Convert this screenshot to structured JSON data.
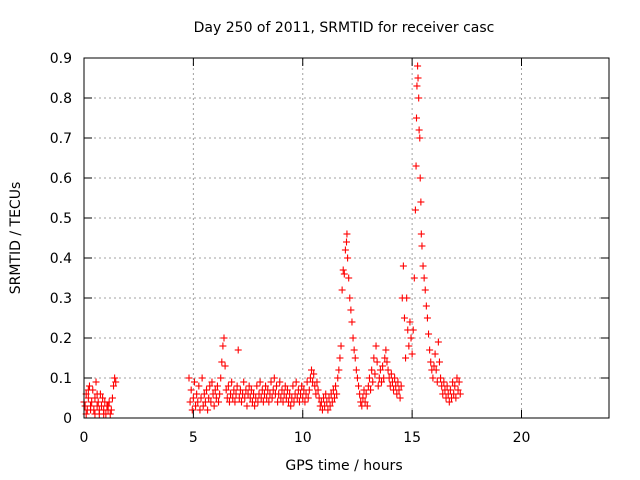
{
  "chart_data": {
    "type": "scatter",
    "title": "Day 250 of 2011, SRMTID for receiver casc",
    "xlabel": "GPS time / hours",
    "ylabel": "SRMTID / TECUs",
    "xlim": [
      0,
      24
    ],
    "ylim": [
      0,
      0.9
    ],
    "xticks": [
      0,
      5,
      10,
      15,
      20
    ],
    "yticks": [
      0,
      0.1,
      0.2,
      0.3,
      0.4,
      0.5,
      0.6,
      0.7,
      0.8,
      0.9
    ],
    "xtick_labels": [
      "0",
      "5",
      "10",
      "15",
      "20"
    ],
    "ytick_labels": [
      "0",
      "0.1",
      "0.2",
      "0.3",
      "0.4",
      "0.5",
      "0.6",
      "0.7",
      "0.8",
      "0.9"
    ],
    "grid": true,
    "marker": "+",
    "color": "#ff0000",
    "series": [
      {
        "name": "SRMTID",
        "points": [
          [
            0.0,
            0.04
          ],
          [
            0.05,
            0.03
          ],
          [
            0.1,
            0.06
          ],
          [
            0.15,
            0.02
          ],
          [
            0.2,
            0.05
          ],
          [
            0.25,
            0.08
          ],
          [
            0.3,
            0.03
          ],
          [
            0.35,
            0.04
          ],
          [
            0.4,
            0.07
          ],
          [
            0.45,
            0.02
          ],
          [
            0.5,
            0.05
          ],
          [
            0.55,
            0.09
          ],
          [
            0.6,
            0.03
          ],
          [
            0.65,
            0.04
          ],
          [
            0.7,
            0.02
          ],
          [
            0.75,
            0.06
          ],
          [
            0.8,
            0.03
          ],
          [
            0.85,
            0.05
          ],
          [
            0.9,
            0.02
          ],
          [
            0.95,
            0.04
          ],
          [
            1.0,
            0.01
          ],
          [
            1.05,
            0.03
          ],
          [
            1.1,
            0.02
          ],
          [
            1.15,
            0.04
          ],
          [
            1.2,
            0.01
          ],
          [
            1.25,
            0.02
          ],
          [
            1.3,
            0.05
          ],
          [
            1.35,
            0.08
          ],
          [
            1.4,
            0.1
          ],
          [
            1.45,
            0.09
          ],
          [
            0.1,
            0.01
          ],
          [
            0.3,
            0.02
          ],
          [
            0.5,
            0.01
          ],
          [
            0.7,
            0.01
          ],
          [
            0.9,
            0.01
          ],
          [
            0.2,
            0.07
          ],
          [
            0.6,
            0.06
          ],
          [
            1.1,
            0.03
          ],
          [
            4.8,
            0.1
          ],
          [
            4.85,
            0.04
          ],
          [
            4.9,
            0.07
          ],
          [
            4.95,
            0.02
          ],
          [
            5.0,
            0.05
          ],
          [
            5.05,
            0.09
          ],
          [
            5.1,
            0.03
          ],
          [
            5.15,
            0.06
          ],
          [
            5.2,
            0.04
          ],
          [
            5.25,
            0.08
          ],
          [
            5.3,
            0.02
          ],
          [
            5.35,
            0.05
          ],
          [
            5.4,
            0.1
          ],
          [
            5.45,
            0.03
          ],
          [
            5.5,
            0.06
          ],
          [
            5.55,
            0.04
          ],
          [
            5.6,
            0.07
          ],
          [
            5.65,
            0.02
          ],
          [
            5.7,
            0.05
          ],
          [
            5.75,
            0.08
          ],
          [
            5.8,
            0.04
          ],
          [
            5.85,
            0.09
          ],
          [
            5.9,
            0.06
          ],
          [
            5.95,
            0.03
          ],
          [
            6.0,
            0.07
          ],
          [
            6.05,
            0.05
          ],
          [
            6.1,
            0.08
          ],
          [
            6.15,
            0.04
          ],
          [
            6.2,
            0.06
          ],
          [
            6.25,
            0.1
          ],
          [
            6.3,
            0.14
          ],
          [
            6.35,
            0.18
          ],
          [
            6.4,
            0.2
          ],
          [
            6.45,
            0.13
          ],
          [
            6.5,
            0.07
          ],
          [
            6.55,
            0.05
          ],
          [
            6.6,
            0.08
          ],
          [
            6.65,
            0.04
          ],
          [
            6.7,
            0.06
          ],
          [
            6.75,
            0.09
          ],
          [
            6.8,
            0.05
          ],
          [
            6.85,
            0.07
          ],
          [
            6.9,
            0.04
          ],
          [
            6.95,
            0.06
          ],
          [
            7.0,
            0.08
          ],
          [
            7.05,
            0.17
          ],
          [
            7.1,
            0.05
          ],
          [
            7.15,
            0.07
          ],
          [
            7.2,
            0.04
          ],
          [
            7.25,
            0.06
          ],
          [
            7.3,
            0.09
          ],
          [
            7.35,
            0.05
          ],
          [
            7.4,
            0.07
          ],
          [
            7.45,
            0.03
          ],
          [
            7.5,
            0.06
          ],
          [
            7.55,
            0.08
          ],
          [
            7.6,
            0.05
          ],
          [
            7.65,
            0.07
          ],
          [
            7.7,
            0.04
          ],
          [
            7.75,
            0.06
          ],
          [
            7.8,
            0.03
          ],
          [
            7.85,
            0.05
          ],
          [
            7.9,
            0.08
          ],
          [
            7.95,
            0.04
          ],
          [
            8.0,
            0.06
          ],
          [
            8.05,
            0.09
          ],
          [
            8.1,
            0.05
          ],
          [
            8.15,
            0.07
          ],
          [
            8.2,
            0.04
          ],
          [
            8.25,
            0.06
          ],
          [
            8.3,
            0.08
          ],
          [
            8.35,
            0.05
          ],
          [
            8.4,
            0.07
          ],
          [
            8.45,
            0.04
          ],
          [
            8.5,
            0.06
          ],
          [
            8.55,
            0.09
          ],
          [
            8.6,
            0.05
          ],
          [
            8.65,
            0.07
          ],
          [
            8.7,
            0.1
          ],
          [
            8.75,
            0.06
          ],
          [
            8.8,
            0.08
          ],
          [
            8.85,
            0.04
          ],
          [
            8.9,
            0.06
          ],
          [
            8.95,
            0.09
          ],
          [
            9.0,
            0.05
          ],
          [
            9.05,
            0.07
          ],
          [
            9.1,
            0.04
          ],
          [
            9.15,
            0.06
          ],
          [
            9.2,
            0.08
          ],
          [
            9.25,
            0.05
          ],
          [
            9.3,
            0.07
          ],
          [
            9.35,
            0.04
          ],
          [
            9.4,
            0.06
          ],
          [
            9.45,
            0.03
          ],
          [
            9.5,
            0.05
          ],
          [
            9.55,
            0.08
          ],
          [
            9.6,
            0.04
          ],
          [
            9.65,
            0.06
          ],
          [
            9.7,
            0.09
          ],
          [
            9.75,
            0.05
          ],
          [
            9.8,
            0.07
          ],
          [
            9.85,
            0.04
          ],
          [
            9.9,
            0.06
          ],
          [
            9.95,
            0.08
          ],
          [
            10.0,
            0.05
          ],
          [
            10.05,
            0.07
          ],
          [
            10.1,
            0.04
          ],
          [
            10.15,
            0.06
          ],
          [
            10.2,
            0.09
          ],
          [
            10.25,
            0.05
          ],
          [
            10.3,
            0.07
          ],
          [
            10.35,
            0.1
          ],
          [
            10.4,
            0.12
          ],
          [
            10.45,
            0.09
          ],
          [
            10.5,
            0.11
          ],
          [
            10.55,
            0.08
          ],
          [
            10.6,
            0.06
          ],
          [
            10.65,
            0.09
          ],
          [
            10.7,
            0.07
          ],
          [
            10.75,
            0.05
          ],
          [
            10.8,
            0.03
          ],
          [
            10.85,
            0.04
          ],
          [
            10.9,
            0.02
          ],
          [
            10.95,
            0.05
          ],
          [
            11.0,
            0.03
          ],
          [
            11.05,
            0.06
          ],
          [
            11.1,
            0.04
          ],
          [
            11.15,
            0.02
          ],
          [
            11.2,
            0.05
          ],
          [
            11.25,
            0.03
          ],
          [
            11.3,
            0.06
          ],
          [
            11.35,
            0.04
          ],
          [
            11.4,
            0.07
          ],
          [
            11.45,
            0.05
          ],
          [
            11.5,
            0.08
          ],
          [
            11.55,
            0.06
          ],
          [
            11.6,
            0.1
          ],
          [
            11.65,
            0.12
          ],
          [
            11.7,
            0.15
          ],
          [
            11.75,
            0.18
          ],
          [
            11.8,
            0.32
          ],
          [
            11.85,
            0.37
          ],
          [
            11.9,
            0.36
          ],
          [
            11.95,
            0.42
          ],
          [
            12.0,
            0.44
          ],
          [
            12.02,
            0.46
          ],
          [
            12.05,
            0.4
          ],
          [
            12.1,
            0.35
          ],
          [
            12.15,
            0.3
          ],
          [
            12.2,
            0.27
          ],
          [
            12.25,
            0.24
          ],
          [
            12.3,
            0.2
          ],
          [
            12.35,
            0.17
          ],
          [
            12.4,
            0.15
          ],
          [
            12.45,
            0.12
          ],
          [
            12.5,
            0.1
          ],
          [
            12.55,
            0.08
          ],
          [
            12.6,
            0.06
          ],
          [
            12.65,
            0.04
          ],
          [
            12.7,
            0.03
          ],
          [
            12.75,
            0.05
          ],
          [
            12.8,
            0.07
          ],
          [
            12.85,
            0.04
          ],
          [
            12.9,
            0.06
          ],
          [
            12.95,
            0.03
          ],
          [
            13.0,
            0.08
          ],
          [
            13.05,
            0.1
          ],
          [
            13.1,
            0.07
          ],
          [
            13.15,
            0.12
          ],
          [
            13.2,
            0.09
          ],
          [
            13.25,
            0.15
          ],
          [
            13.3,
            0.11
          ],
          [
            13.35,
            0.18
          ],
          [
            13.4,
            0.14
          ],
          [
            13.45,
            0.08
          ],
          [
            13.5,
            0.1
          ],
          [
            13.55,
            0.12
          ],
          [
            13.6,
            0.09
          ],
          [
            13.65,
            0.13
          ],
          [
            13.7,
            0.1
          ],
          [
            13.75,
            0.15
          ],
          [
            13.8,
            0.17
          ],
          [
            13.85,
            0.14
          ],
          [
            13.9,
            0.12
          ],
          [
            13.95,
            0.1
          ],
          [
            14.0,
            0.08
          ],
          [
            14.05,
            0.11
          ],
          [
            14.1,
            0.09
          ],
          [
            14.15,
            0.07
          ],
          [
            14.2,
            0.1
          ],
          [
            14.25,
            0.08
          ],
          [
            14.3,
            0.06
          ],
          [
            14.35,
            0.09
          ],
          [
            14.4,
            0.07
          ],
          [
            14.45,
            0.05
          ],
          [
            14.5,
            0.08
          ],
          [
            14.55,
            0.3
          ],
          [
            14.6,
            0.38
          ],
          [
            14.65,
            0.25
          ],
          [
            14.7,
            0.15
          ],
          [
            14.75,
            0.3
          ],
          [
            14.8,
            0.22
          ],
          [
            14.85,
            0.18
          ],
          [
            14.9,
            0.24
          ],
          [
            14.95,
            0.2
          ],
          [
            15.0,
            0.16
          ],
          [
            15.05,
            0.22
          ],
          [
            15.1,
            0.35
          ],
          [
            15.15,
            0.52
          ],
          [
            15.18,
            0.63
          ],
          [
            15.2,
            0.75
          ],
          [
            15.22,
            0.83
          ],
          [
            15.25,
            0.88
          ],
          [
            15.27,
            0.85
          ],
          [
            15.3,
            0.8
          ],
          [
            15.32,
            0.72
          ],
          [
            15.35,
            0.7
          ],
          [
            15.37,
            0.6
          ],
          [
            15.4,
            0.54
          ],
          [
            15.42,
            0.46
          ],
          [
            15.45,
            0.43
          ],
          [
            15.5,
            0.38
          ],
          [
            15.55,
            0.35
          ],
          [
            15.6,
            0.32
          ],
          [
            15.65,
            0.28
          ],
          [
            15.7,
            0.25
          ],
          [
            15.75,
            0.21
          ],
          [
            15.8,
            0.17
          ],
          [
            15.85,
            0.14
          ],
          [
            15.9,
            0.12
          ],
          [
            15.95,
            0.1
          ],
          [
            16.0,
            0.13
          ],
          [
            16.05,
            0.16
          ],
          [
            16.1,
            0.12
          ],
          [
            16.15,
            0.09
          ],
          [
            16.2,
            0.19
          ],
          [
            16.25,
            0.14
          ],
          [
            16.3,
            0.1
          ],
          [
            16.35,
            0.08
          ],
          [
            16.4,
            0.06
          ],
          [
            16.45,
            0.09
          ],
          [
            16.5,
            0.07
          ],
          [
            16.55,
            0.05
          ],
          [
            16.6,
            0.08
          ],
          [
            16.65,
            0.06
          ],
          [
            16.7,
            0.04
          ],
          [
            16.75,
            0.07
          ],
          [
            16.8,
            0.05
          ],
          [
            16.85,
            0.09
          ],
          [
            16.9,
            0.06
          ],
          [
            16.95,
            0.08
          ],
          [
            17.0,
            0.05
          ],
          [
            17.05,
            0.1
          ],
          [
            17.1,
            0.07
          ],
          [
            17.15,
            0.09
          ],
          [
            17.2,
            0.06
          ]
        ]
      }
    ]
  }
}
